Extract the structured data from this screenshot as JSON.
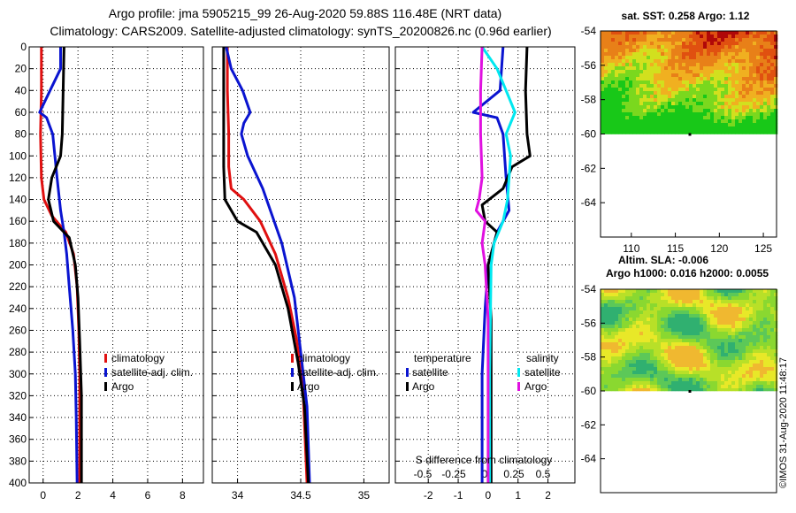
{
  "title_line1": "Argo profile: jma 5905215_99 26-Aug-2020 59.88S 116.48E (NRT data)",
  "title_line2": "Climatology: CARS2009. Satellite-adjusted climatology: synTS_20200826.nc (0.96d earlier)",
  "copyright": "©IMOS 31-Aug-2020 11:48:17",
  "colors": {
    "climatology": "#e01010",
    "satellite_adj": "#0a14d0",
    "argo": "#000000",
    "sal_satellite": "#00e8f0",
    "sal_argo": "#e010e0",
    "land": "#ffffff"
  },
  "chart_data": [
    {
      "id": "temperature",
      "type": "line",
      "x_ticks": [
        0,
        2,
        4,
        6,
        8
      ],
      "xlim": [
        -0.8,
        9.2
      ],
      "y_ticks": [
        0,
        20,
        40,
        60,
        80,
        100,
        120,
        140,
        160,
        180,
        200,
        220,
        240,
        260,
        280,
        300,
        320,
        340,
        360,
        380,
        400
      ],
      "ylim": [
        0,
        400
      ],
      "legend": [
        "climatology",
        "satellite-adj. clim.",
        "Argo"
      ],
      "series": [
        {
          "name": "climatology",
          "color": "#e01010",
          "points": [
            [
              -0.1,
              0
            ],
            [
              -0.1,
              40
            ],
            [
              -0.15,
              80
            ],
            [
              -0.1,
              120
            ],
            [
              0.05,
              140
            ],
            [
              0.5,
              155
            ],
            [
              1.3,
              170
            ],
            [
              1.75,
              190
            ],
            [
              1.95,
              220
            ],
            [
              2.05,
              260
            ],
            [
              2.1,
              300
            ],
            [
              2.1,
              360
            ],
            [
              2.1,
              400
            ]
          ]
        },
        {
          "name": "satellite-adj. clim.",
          "color": "#0a14d0",
          "points": [
            [
              1.0,
              0
            ],
            [
              1.0,
              20
            ],
            [
              0.4,
              40
            ],
            [
              -0.2,
              60
            ],
            [
              0.2,
              65
            ],
            [
              0.55,
              80
            ],
            [
              0.8,
              120
            ],
            [
              1.0,
              150
            ],
            [
              1.2,
              170
            ],
            [
              1.35,
              190
            ],
            [
              1.5,
              220
            ],
            [
              1.7,
              260
            ],
            [
              1.85,
              300
            ],
            [
              1.9,
              340
            ],
            [
              1.95,
              400
            ]
          ]
        },
        {
          "name": "Argo",
          "color": "#000000",
          "points": [
            [
              1.2,
              0
            ],
            [
              1.15,
              40
            ],
            [
              1.1,
              80
            ],
            [
              1.0,
              100
            ],
            [
              0.5,
              120
            ],
            [
              0.3,
              140
            ],
            [
              0.6,
              160
            ],
            [
              1.5,
              175
            ],
            [
              1.85,
              200
            ],
            [
              2.0,
              230
            ],
            [
              2.1,
              270
            ],
            [
              2.2,
              320
            ],
            [
              2.2,
              360
            ],
            [
              2.2,
              400
            ]
          ]
        }
      ]
    },
    {
      "id": "salinity",
      "type": "line",
      "x_ticks": [
        34,
        34.5,
        35
      ],
      "xlim": [
        33.8,
        35.2
      ],
      "y_ticks": [
        0,
        20,
        40,
        60,
        80,
        100,
        120,
        140,
        160,
        180,
        200,
        220,
        240,
        260,
        280,
        300,
        320,
        340,
        360,
        380,
        400
      ],
      "ylim": [
        0,
        400
      ],
      "legend": [
        "climatology",
        "satellite-adj. clim.",
        "Argo"
      ],
      "series": [
        {
          "name": "climatology",
          "color": "#e01010",
          "points": [
            [
              33.92,
              0
            ],
            [
              33.92,
              40
            ],
            [
              33.93,
              80
            ],
            [
              33.93,
              110
            ],
            [
              33.95,
              130
            ],
            [
              34.05,
              140
            ],
            [
              34.18,
              160
            ],
            [
              34.3,
              190
            ],
            [
              34.4,
              230
            ],
            [
              34.47,
              270
            ],
            [
              34.52,
              320
            ],
            [
              34.55,
              400
            ]
          ]
        },
        {
          "name": "satellite-adj. clim.",
          "color": "#0a14d0",
          "points": [
            [
              33.91,
              0
            ],
            [
              33.95,
              20
            ],
            [
              34.04,
              40
            ],
            [
              34.1,
              60
            ],
            [
              34.05,
              70
            ],
            [
              34.03,
              80
            ],
            [
              34.08,
              100
            ],
            [
              34.2,
              130
            ],
            [
              34.35,
              180
            ],
            [
              34.45,
              230
            ],
            [
              34.5,
              280
            ],
            [
              34.55,
              330
            ],
            [
              34.57,
              400
            ]
          ]
        },
        {
          "name": "Argo",
          "color": "#000000",
          "points": [
            [
              33.89,
              0
            ],
            [
              33.89,
              40
            ],
            [
              33.89,
              80
            ],
            [
              33.89,
              110
            ],
            [
              33.9,
              140
            ],
            [
              34.0,
              160
            ],
            [
              34.15,
              170
            ],
            [
              34.3,
              200
            ],
            [
              34.4,
              240
            ],
            [
              34.48,
              290
            ],
            [
              34.53,
              330
            ],
            [
              34.56,
              400
            ]
          ]
        }
      ]
    },
    {
      "id": "difference",
      "type": "line",
      "x_ticks": [
        -2,
        -1,
        0,
        1,
        2
      ],
      "x_ticks_salinity": [
        -0.5,
        -0.25,
        0,
        0.25,
        0.5
      ],
      "xlim": [
        -3.1,
        2.9
      ],
      "ylim": [
        0,
        400
      ],
      "xlabel": "S difference from climatology",
      "legend_temperature_title": "temperature",
      "legend_salinity_title": "salinity",
      "legend": [
        "satellite",
        "Argo",
        "satellite",
        "Argo"
      ],
      "series": [
        {
          "name": "temperature satellite",
          "color": "#0a14d0",
          "points": [
            [
              0.5,
              0
            ],
            [
              0.4,
              40
            ],
            [
              -0.5,
              60
            ],
            [
              0.3,
              65
            ],
            [
              0.5,
              80
            ],
            [
              0.6,
              120
            ],
            [
              0.7,
              150
            ],
            [
              0.3,
              170
            ],
            [
              0.0,
              200
            ],
            [
              -0.1,
              240
            ],
            [
              -0.2,
              300
            ],
            [
              -0.2,
              360
            ],
            [
              -0.2,
              400
            ]
          ]
        },
        {
          "name": "temperature Argo",
          "color": "#000000",
          "points": [
            [
              1.3,
              0
            ],
            [
              1.25,
              40
            ],
            [
              1.3,
              80
            ],
            [
              1.4,
              100
            ],
            [
              0.8,
              110
            ],
            [
              0.5,
              130
            ],
            [
              -0.2,
              145
            ],
            [
              -0.1,
              160
            ],
            [
              0.3,
              170
            ],
            [
              0.0,
              200
            ],
            [
              0.1,
              250
            ],
            [
              0.1,
              300
            ],
            [
              0.1,
              400
            ]
          ]
        },
        {
          "name": "salinity satellite",
          "color": "#00e8f0",
          "points": [
            [
              -0.2,
              0
            ],
            [
              0.3,
              20
            ],
            [
              0.6,
              40
            ],
            [
              0.9,
              60
            ],
            [
              0.6,
              80
            ],
            [
              0.75,
              100
            ],
            [
              0.65,
              140
            ],
            [
              0.5,
              160
            ],
            [
              0.2,
              180
            ],
            [
              0.1,
              200
            ],
            [
              0.05,
              300
            ],
            [
              0.05,
              400
            ]
          ]
        },
        {
          "name": "salinity Argo",
          "color": "#e010e0",
          "points": [
            [
              -0.2,
              0
            ],
            [
              -0.25,
              40
            ],
            [
              -0.25,
              80
            ],
            [
              -0.2,
              120
            ],
            [
              -0.3,
              140
            ],
            [
              -0.4,
              150
            ],
            [
              -0.1,
              160
            ],
            [
              -0.2,
              180
            ],
            [
              -0.1,
              200
            ],
            [
              0.0,
              250
            ],
            [
              0.0,
              320
            ],
            [
              0.0,
              400
            ]
          ]
        }
      ]
    },
    {
      "id": "sst_map",
      "type": "heatmap",
      "title": "sat. SST: 0.258 Argo: 1.12",
      "x_ticks": [
        110,
        115,
        120,
        125
      ],
      "xlim": [
        106.5,
        126.5
      ],
      "y_ticks": [
        -54,
        -56,
        -58,
        -60,
        -62,
        -64
      ],
      "ylim": [
        -66,
        -54
      ]
    },
    {
      "id": "sla_map",
      "type": "heatmap",
      "title": "Altim. SLA: -0.006",
      "subtitle": "Argo h1000: 0.016 h2000: 0.0055",
      "y_ticks": [
        -54,
        -56,
        -58,
        -60,
        -62,
        -64
      ],
      "ylim": [
        -66,
        -54
      ]
    }
  ]
}
